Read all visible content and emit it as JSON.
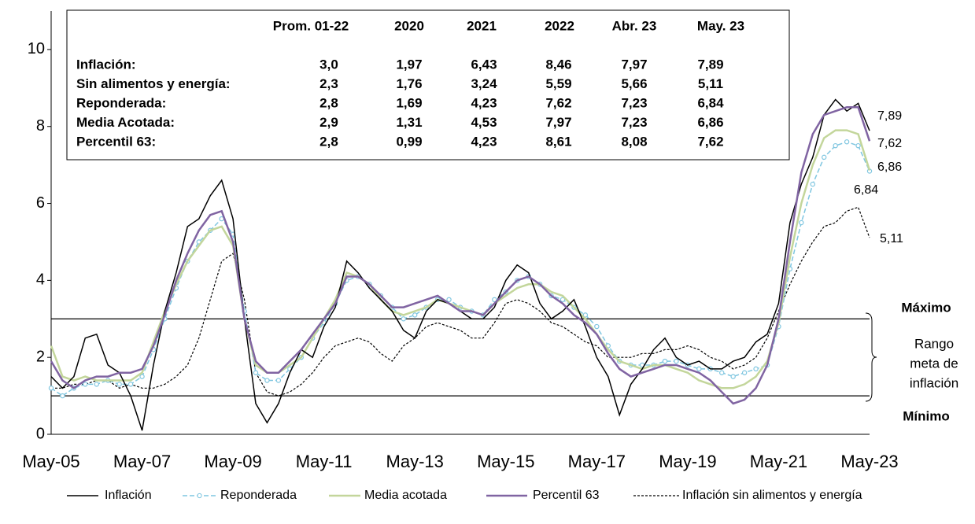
{
  "chart_data": {
    "type": "line",
    "categories": [
      "May-05",
      null,
      null,
      null,
      null,
      null,
      null,
      null,
      "May-07",
      null,
      null,
      null,
      null,
      null,
      null,
      null,
      "May-09",
      null,
      null,
      null,
      null,
      null,
      null,
      null,
      "May-11",
      null,
      null,
      null,
      null,
      null,
      null,
      null,
      "May-13",
      null,
      null,
      null,
      null,
      null,
      null,
      null,
      "May-15",
      null,
      null,
      null,
      null,
      null,
      null,
      null,
      "May-17",
      null,
      null,
      null,
      null,
      null,
      null,
      null,
      "May-19",
      null,
      null,
      null,
      null,
      null,
      null,
      null,
      "May-21",
      null,
      null,
      null,
      null,
      null,
      null,
      null,
      "May-23"
    ],
    "ylim": [
      0,
      11
    ],
    "yticks": [
      0,
      2,
      4,
      6,
      8,
      10
    ],
    "grid": false,
    "series": [
      {
        "name": "Inflación",
        "color": "#000000",
        "dash": "solid",
        "markers": false,
        "end_label": "7,89",
        "values": [
          1.5,
          1.2,
          1.5,
          2.5,
          2.6,
          1.8,
          1.6,
          1.0,
          0.1,
          1.8,
          3.2,
          4.2,
          5.4,
          5.6,
          6.2,
          6.6,
          5.6,
          3.0,
          0.8,
          0.3,
          0.8,
          1.6,
          2.2,
          2.0,
          2.8,
          3.3,
          4.5,
          4.2,
          3.8,
          3.5,
          3.2,
          2.7,
          2.5,
          3.2,
          3.5,
          3.4,
          3.2,
          3.0,
          3.0,
          3.3,
          4.0,
          4.4,
          4.2,
          3.4,
          3.0,
          3.2,
          3.5,
          2.8,
          2.0,
          1.5,
          0.5,
          1.3,
          1.7,
          2.2,
          2.5,
          2.0,
          1.8,
          1.9,
          1.7,
          1.7,
          1.9,
          2.0,
          2.4,
          2.6,
          3.4,
          5.5,
          6.5,
          7.2,
          8.3,
          8.7,
          8.4,
          8.6,
          7.89
        ]
      },
      {
        "name": "Reponderada",
        "color": "#7fc6e0",
        "dash": "dashed",
        "markers": true,
        "end_label": "6,84",
        "values": [
          1.2,
          1.0,
          1.2,
          1.3,
          1.3,
          1.4,
          1.3,
          1.3,
          1.5,
          2.2,
          3.0,
          3.8,
          4.5,
          5.0,
          5.3,
          5.6,
          5.2,
          3.2,
          1.6,
          1.4,
          1.4,
          1.7,
          2.0,
          2.5,
          2.9,
          3.4,
          4.0,
          4.1,
          3.9,
          3.6,
          3.3,
          3.0,
          3.1,
          3.3,
          3.5,
          3.5,
          3.3,
          3.2,
          3.1,
          3.5,
          3.7,
          4.0,
          4.1,
          3.9,
          3.6,
          3.5,
          3.3,
          3.1,
          2.8,
          2.3,
          1.9,
          1.8,
          1.8,
          1.8,
          1.9,
          1.9,
          1.8,
          1.7,
          1.7,
          1.6,
          1.5,
          1.6,
          1.7,
          1.8,
          2.8,
          4.3,
          5.5,
          6.5,
          7.2,
          7.5,
          7.6,
          7.5,
          6.84
        ]
      },
      {
        "name": "Media acotada",
        "color": "#c3d69b",
        "dash": "solid",
        "markers": false,
        "end_label": "6,86",
        "values": [
          2.3,
          1.5,
          1.4,
          1.5,
          1.4,
          1.4,
          1.4,
          1.4,
          1.6,
          2.4,
          3.2,
          3.9,
          4.5,
          4.9,
          5.3,
          5.4,
          4.9,
          3.0,
          1.8,
          1.6,
          1.6,
          1.8,
          2.0,
          2.5,
          3.0,
          3.5,
          4.2,
          4.1,
          3.9,
          3.5,
          3.2,
          3.1,
          3.2,
          3.3,
          3.5,
          3.4,
          3.3,
          3.2,
          3.1,
          3.4,
          3.6,
          3.8,
          3.9,
          3.9,
          3.7,
          3.6,
          3.3,
          3.0,
          2.6,
          2.2,
          1.9,
          1.8,
          1.7,
          1.8,
          1.8,
          1.7,
          1.6,
          1.4,
          1.3,
          1.2,
          1.2,
          1.3,
          1.5,
          1.9,
          2.9,
          4.6,
          6.0,
          7.0,
          7.7,
          7.9,
          7.9,
          7.8,
          6.86
        ]
      },
      {
        "name": "Percentil 63",
        "color": "#8064a2",
        "dash": "solid",
        "markers": false,
        "end_label": "7,62",
        "values": [
          1.9,
          1.4,
          1.2,
          1.4,
          1.5,
          1.5,
          1.6,
          1.6,
          1.7,
          2.3,
          3.1,
          4.0,
          4.7,
          5.3,
          5.7,
          5.8,
          5.0,
          3.0,
          1.9,
          1.6,
          1.6,
          1.9,
          2.2,
          2.6,
          3.0,
          3.4,
          4.1,
          4.1,
          3.9,
          3.6,
          3.3,
          3.3,
          3.4,
          3.5,
          3.6,
          3.4,
          3.2,
          3.2,
          3.1,
          3.4,
          3.7,
          4.0,
          4.1,
          3.9,
          3.6,
          3.4,
          3.1,
          2.9,
          2.6,
          2.1,
          1.7,
          1.5,
          1.6,
          1.7,
          1.8,
          1.8,
          1.7,
          1.6,
          1.4,
          1.1,
          0.8,
          0.9,
          1.2,
          1.8,
          3.0,
          5.0,
          6.8,
          7.8,
          8.3,
          8.4,
          8.5,
          8.5,
          7.62
        ]
      },
      {
        "name": "Inflación sin alimentos y energía",
        "color": "#000000",
        "dash": "dotted",
        "markers": false,
        "end_label": "5,11",
        "values": [
          1.2,
          1.2,
          1.3,
          1.3,
          1.4,
          1.4,
          1.2,
          1.3,
          1.2,
          1.2,
          1.3,
          1.5,
          1.8,
          2.5,
          3.5,
          4.5,
          4.7,
          3.5,
          1.6,
          1.1,
          1.0,
          1.1,
          1.3,
          1.6,
          2.0,
          2.3,
          2.4,
          2.5,
          2.4,
          2.1,
          1.9,
          2.3,
          2.5,
          2.8,
          2.9,
          2.8,
          2.7,
          2.5,
          2.5,
          2.9,
          3.4,
          3.5,
          3.4,
          3.2,
          2.9,
          2.8,
          2.6,
          2.4,
          2.3,
          2.0,
          2.0,
          2.0,
          2.1,
          2.1,
          2.2,
          2.2,
          2.3,
          2.2,
          2.0,
          1.9,
          1.7,
          1.8,
          2.0,
          2.5,
          3.2,
          3.9,
          4.5,
          5.0,
          5.4,
          5.5,
          5.8,
          5.9,
          5.11
        ]
      }
    ],
    "reference_lines": [
      {
        "value": 3,
        "label": "Máximo"
      },
      {
        "value": 1,
        "label": "Mínimo"
      }
    ],
    "range_annotation": [
      "Rango",
      "meta de",
      "inflación"
    ],
    "table": {
      "columns": [
        "Prom. 01-22",
        "2020",
        "2021",
        "2022",
        "Abr. 23",
        "May. 23"
      ],
      "rows": [
        {
          "label": "Inflación:",
          "cells": [
            "3,0",
            "1,97",
            "6,43",
            "8,46",
            "7,97",
            "7,89"
          ]
        },
        {
          "label": "Sin alimentos y energía:",
          "cells": [
            "2,3",
            "1,76",
            "3,24",
            "5,59",
            "5,66",
            "5,11"
          ]
        },
        {
          "label": "Reponderada:",
          "cells": [
            "2,8",
            "1,69",
            "4,23",
            "7,62",
            "7,23",
            "6,84"
          ]
        },
        {
          "label": "Media Acotada:",
          "cells": [
            "2,9",
            "1,31",
            "4,53",
            "7,97",
            "7,23",
            "6,86"
          ]
        },
        {
          "label": "Percentil 63:",
          "cells": [
            "2,8",
            "0,99",
            "4,23",
            "8,61",
            "8,08",
            "7,62"
          ]
        }
      ]
    }
  }
}
